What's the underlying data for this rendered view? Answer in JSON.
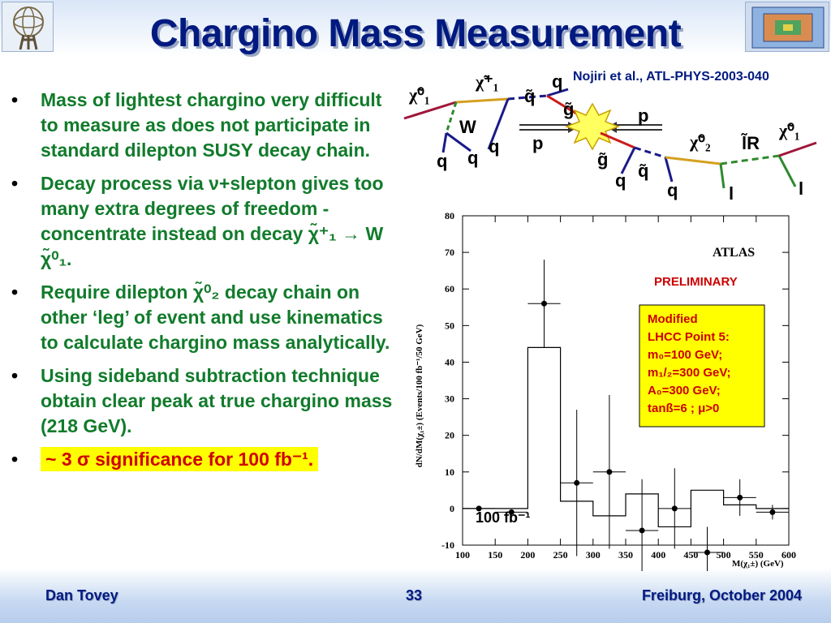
{
  "slide": {
    "title": "Chargino Mass Measurement",
    "citation": "Nojiri et al., ATL-PHYS-2003-040"
  },
  "bullets": [
    {
      "text": "Mass of lightest chargino very difficult to measure as does not participate in standard dilepton SUSY decay chain."
    },
    {
      "text": "Decay process via ν+slepton gives too many extra degrees of freedom - concentrate instead on decay χ̃⁺₁ → W χ̃⁰₁."
    },
    {
      "text": "Require dilepton χ̃⁰₂ decay chain on other ‘leg’ of event and use kinematics to calculate chargino mass analytically."
    },
    {
      "text": "Using sideband subtraction technique obtain clear peak at true chargino mass (218 GeV)."
    },
    {
      "text": "~ 3 σ significance for 100 fb⁻¹."
    }
  ],
  "diagram_labels": {
    "chi01_left": "χ̃⁰₁",
    "chargino": "χ̃⁺₁",
    "w": "W",
    "q1": "q",
    "q2": "q",
    "q3": "q",
    "qtilde_top": "q̃",
    "q_top": "q",
    "gtilde_top": "g̃",
    "p_right": "p",
    "p_left": "p",
    "gtilde_bottom": "g̃",
    "q_bottom1": "q",
    "qtilde_bottom": "q̃",
    "q_bottom2": "q",
    "chi02": "χ̃⁰₂",
    "lr": "l̃R",
    "chi01_right": "χ̃⁰₁",
    "l1": "l",
    "l2": "l"
  },
  "chart_data": {
    "type": "histogram",
    "title": "",
    "xlabel": "M(χ₁±) (GeV)",
    "ylabel": "dN/dM(χ₁±) (Events/100 fb⁻¹/50 GeV)",
    "xlim": [
      100,
      600
    ],
    "ylim": [
      -10,
      80
    ],
    "x_ticks": [
      100,
      150,
      200,
      250,
      300,
      350,
      400,
      450,
      500,
      550,
      600
    ],
    "y_ticks": [
      -10,
      0,
      10,
      20,
      30,
      40,
      50,
      60,
      70,
      80
    ],
    "histogram": {
      "edges": [
        100,
        150,
        200,
        250,
        300,
        350,
        400,
        450,
        500,
        550,
        600
      ],
      "values": [
        0,
        0,
        44,
        2,
        -2,
        4,
        -5,
        5,
        1,
        0
      ]
    },
    "points": {
      "x": [
        125,
        175,
        225,
        275,
        325,
        375,
        425,
        475,
        525,
        575
      ],
      "y": [
        0,
        -1,
        56,
        7,
        10,
        -6,
        0,
        -12,
        3,
        -1
      ],
      "xerr": 25,
      "yerr": [
        0,
        0,
        12,
        20,
        21,
        14,
        11,
        7,
        5,
        2
      ]
    },
    "annotations": {
      "experiment": "ATLAS",
      "status": "PRELIMINARY",
      "luminosity": "100 fb⁻¹",
      "box_lines": [
        "Modified",
        "LHCC Point 5:",
        "m₀=100 GeV;",
        "m₁/₂=300 GeV;",
        "A₀=300 GeV;",
        "tanß=6 ; μ>0"
      ]
    },
    "colors": {
      "box_bg": "#ffff00",
      "box_text": "#cc0000",
      "preliminary": "#cc0000"
    }
  },
  "footer": {
    "author": "Dan Tovey",
    "page": "33",
    "venue": "Freiburg, October 2004"
  }
}
